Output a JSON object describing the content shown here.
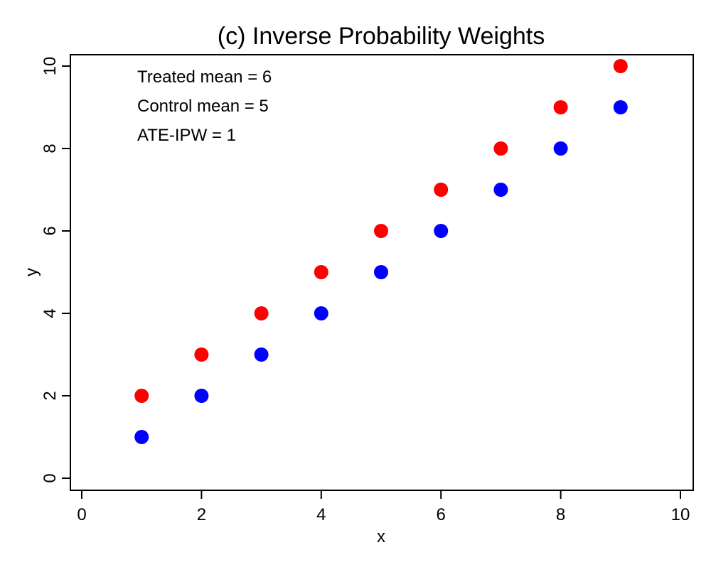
{
  "chart_data": {
    "type": "scatter",
    "title": "(c) Inverse Probability Weights",
    "xlabel": "x",
    "ylabel": "y",
    "xlim": [
      0,
      10
    ],
    "ylim": [
      0,
      10
    ],
    "xticks": [
      0,
      2,
      4,
      6,
      8,
      10
    ],
    "yticks": [
      0,
      2,
      4,
      6,
      8,
      10
    ],
    "grid": false,
    "annotations": [
      "Treated mean = 6",
      "Control mean = 5",
      "ATE-IPW = 1"
    ],
    "series": [
      {
        "color": "#ff0000",
        "x": [
          1,
          2,
          3,
          4,
          5,
          6,
          7,
          8,
          9
        ],
        "y": [
          2,
          3,
          4,
          5,
          6,
          7,
          8,
          9,
          10
        ]
      },
      {
        "color": "#0000ff",
        "x": [
          1,
          2,
          3,
          4,
          5,
          6,
          7,
          8,
          9
        ],
        "y": [
          1,
          2,
          3,
          4,
          5,
          6,
          7,
          8,
          9
        ]
      }
    ]
  }
}
